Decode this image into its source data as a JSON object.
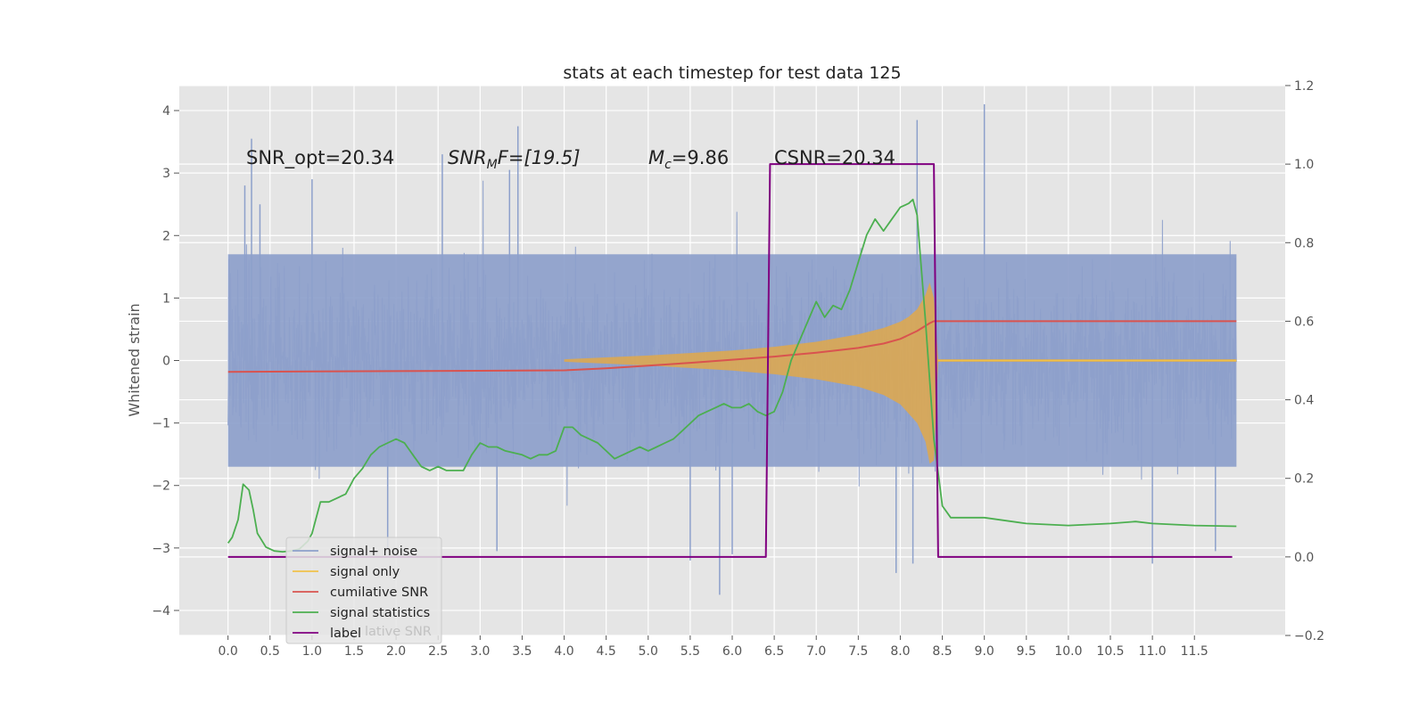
{
  "chart_data": {
    "type": "line",
    "title": "stats at each timestep for test data 125",
    "ylabel": "Whitened strain",
    "xlabel": "",
    "xlim": [
      -0.58,
      12.58
    ],
    "ylim_left": [
      -4.4,
      4.4
    ],
    "ylim_right": [
      -0.2,
      1.2
    ],
    "x_ticks": [
      0.0,
      0.5,
      1.0,
      1.5,
      2.0,
      2.5,
      3.0,
      3.5,
      4.0,
      4.5,
      5.0,
      5.5,
      6.0,
      6.5,
      7.0,
      7.5,
      8.0,
      8.5,
      9.0,
      9.5,
      10.0,
      10.5,
      11.0,
      11.5
    ],
    "x_tick_labels": [
      "0.0",
      "0.5",
      "1.0",
      "1.5",
      "2.0",
      "2.5",
      "3.0",
      "3.5",
      "4.0",
      "4.5",
      "5.0",
      "5.5",
      "6.0",
      "6.5",
      "7.0",
      "7.5",
      "8.0",
      "8.5",
      "9.0",
      "9.5",
      "10.0",
      "10.5",
      "11.0",
      "11.5"
    ],
    "y_ticks_left": [
      4,
      3,
      2,
      1,
      0,
      -1,
      -2,
      -3,
      -4
    ],
    "y_tick_labels_left": [
      "4",
      "3",
      "2",
      "1",
      "0",
      "−1",
      "−2",
      "−3",
      "−4"
    ],
    "y_ticks_right": [
      1.2,
      1.0,
      0.8,
      0.6,
      0.4,
      0.2,
      0.0,
      -0.2
    ],
    "y_tick_labels_right": [
      "1.2",
      "1.0",
      "0.8",
      "0.6",
      "0.4",
      "0.2",
      "0.0",
      "−0.2"
    ],
    "grid": true,
    "legend_position": "lower-left",
    "annotations": {
      "snr_opt": "SNR_opt=20.34",
      "snr_mf_base": "SNR",
      "snr_mf_sub": "M",
      "snr_mf_rest": "F=[19.5]",
      "mc_base": "M",
      "mc_sub": "c",
      "mc_rest": "=9.86",
      "csnr": "CSNR=20.34"
    },
    "legend": [
      {
        "label": "signal+ noise",
        "color": "#8da0cb"
      },
      {
        "label": "signal only",
        "color": "#f0c24a"
      },
      {
        "label": "cumilative SNR",
        "color": "#d9534f"
      },
      {
        "label": "signal statistics",
        "color": "#4caf50"
      },
      {
        "label": "label",
        "color": "#800080"
      }
    ],
    "legend_overlap_text": "lative SNR",
    "series": [
      {
        "name": "signal+ noise",
        "axis": "left",
        "color": "#8da0cb",
        "description_type": "noise_band",
        "x_range": [
          0.0,
          12.0
        ],
        "envelope_upper": 1.7,
        "envelope_lower": -1.7,
        "peak_max": 4.1,
        "peak_min": -3.75
      },
      {
        "name": "signal only",
        "axis": "left",
        "color": "#e0a84a",
        "description_type": "chirp_fill",
        "x": [
          4.0,
          4.5,
          5.0,
          5.5,
          6.0,
          6.5,
          7.0,
          7.5,
          7.8,
          8.0,
          8.1,
          8.2,
          8.3,
          8.35,
          8.4,
          8.45,
          9.0,
          12.0
        ],
        "upper": [
          0.02,
          0.05,
          0.08,
          0.12,
          0.16,
          0.22,
          0.3,
          0.42,
          0.52,
          0.62,
          0.7,
          0.82,
          1.05,
          1.25,
          1.0,
          0.02,
          0.02,
          0.02
        ],
        "lower": [
          -0.02,
          -0.05,
          -0.08,
          -0.12,
          -0.16,
          -0.22,
          -0.3,
          -0.42,
          -0.55,
          -0.7,
          -0.85,
          -1.0,
          -1.3,
          -1.65,
          -1.6,
          -0.02,
          -0.02,
          -0.02
        ]
      },
      {
        "name": "cumilative SNR",
        "axis": "right",
        "color": "#d9534f",
        "x": [
          0.0,
          1.0,
          2.0,
          3.0,
          4.0,
          4.5,
          5.0,
          5.5,
          6.0,
          6.5,
          7.0,
          7.5,
          7.8,
          8.0,
          8.2,
          8.35,
          8.4,
          9.0,
          10.0,
          11.0,
          12.0
        ],
        "y": [
          0.471,
          0.472,
          0.473,
          0.474,
          0.475,
          0.48,
          0.487,
          0.494,
          0.502,
          0.51,
          0.52,
          0.532,
          0.543,
          0.555,
          0.575,
          0.595,
          0.6,
          0.6,
          0.6,
          0.6,
          0.6
        ]
      },
      {
        "name": "signal statistics",
        "axis": "right",
        "color": "#4caf50",
        "x": [
          0.0,
          0.05,
          0.12,
          0.18,
          0.25,
          0.3,
          0.35,
          0.45,
          0.55,
          0.65,
          0.75,
          0.85,
          0.95,
          1.0,
          1.1,
          1.2,
          1.3,
          1.4,
          1.5,
          1.6,
          1.7,
          1.8,
          1.9,
          2.0,
          2.1,
          2.2,
          2.3,
          2.4,
          2.5,
          2.6,
          2.7,
          2.8,
          2.9,
          3.0,
          3.1,
          3.2,
          3.3,
          3.5,
          3.6,
          3.7,
          3.8,
          3.9,
          4.0,
          4.1,
          4.2,
          4.3,
          4.4,
          4.5,
          4.6,
          4.7,
          4.8,
          4.9,
          5.0,
          5.1,
          5.2,
          5.3,
          5.4,
          5.5,
          5.6,
          5.7,
          5.8,
          5.9,
          6.0,
          6.1,
          6.2,
          6.3,
          6.4,
          6.5,
          6.6,
          6.7,
          6.8,
          6.9,
          7.0,
          7.1,
          7.2,
          7.3,
          7.4,
          7.5,
          7.6,
          7.7,
          7.8,
          7.9,
          8.0,
          8.1,
          8.15,
          8.2,
          8.3,
          8.4,
          8.5,
          8.6,
          9.0,
          9.5,
          10.0,
          10.5,
          10.8,
          11.0,
          11.5,
          12.0
        ],
        "y": [
          0.035,
          0.05,
          0.095,
          0.185,
          0.17,
          0.12,
          0.06,
          0.025,
          0.015,
          0.013,
          0.015,
          0.02,
          0.04,
          0.06,
          0.14,
          0.14,
          0.15,
          0.16,
          0.2,
          0.225,
          0.26,
          0.28,
          0.29,
          0.3,
          0.29,
          0.26,
          0.23,
          0.22,
          0.23,
          0.22,
          0.22,
          0.22,
          0.26,
          0.29,
          0.28,
          0.28,
          0.27,
          0.26,
          0.25,
          0.26,
          0.26,
          0.27,
          0.33,
          0.33,
          0.31,
          0.3,
          0.29,
          0.27,
          0.25,
          0.26,
          0.27,
          0.28,
          0.27,
          0.28,
          0.29,
          0.3,
          0.32,
          0.34,
          0.36,
          0.37,
          0.38,
          0.39,
          0.38,
          0.38,
          0.39,
          0.37,
          0.36,
          0.37,
          0.42,
          0.5,
          0.55,
          0.6,
          0.65,
          0.61,
          0.64,
          0.63,
          0.68,
          0.75,
          0.82,
          0.86,
          0.83,
          0.86,
          0.89,
          0.9,
          0.91,
          0.87,
          0.6,
          0.3,
          0.13,
          0.1,
          0.1,
          0.085,
          0.08,
          0.085,
          0.09,
          0.085,
          0.08,
          0.078
        ]
      },
      {
        "name": "label",
        "axis": "right",
        "color": "#800080",
        "x": [
          0.0,
          6.4,
          6.45,
          8.4,
          8.45,
          11.95
        ],
        "y": [
          0.0,
          0.0,
          1.0,
          1.0,
          0.0,
          0.0
        ]
      }
    ]
  }
}
